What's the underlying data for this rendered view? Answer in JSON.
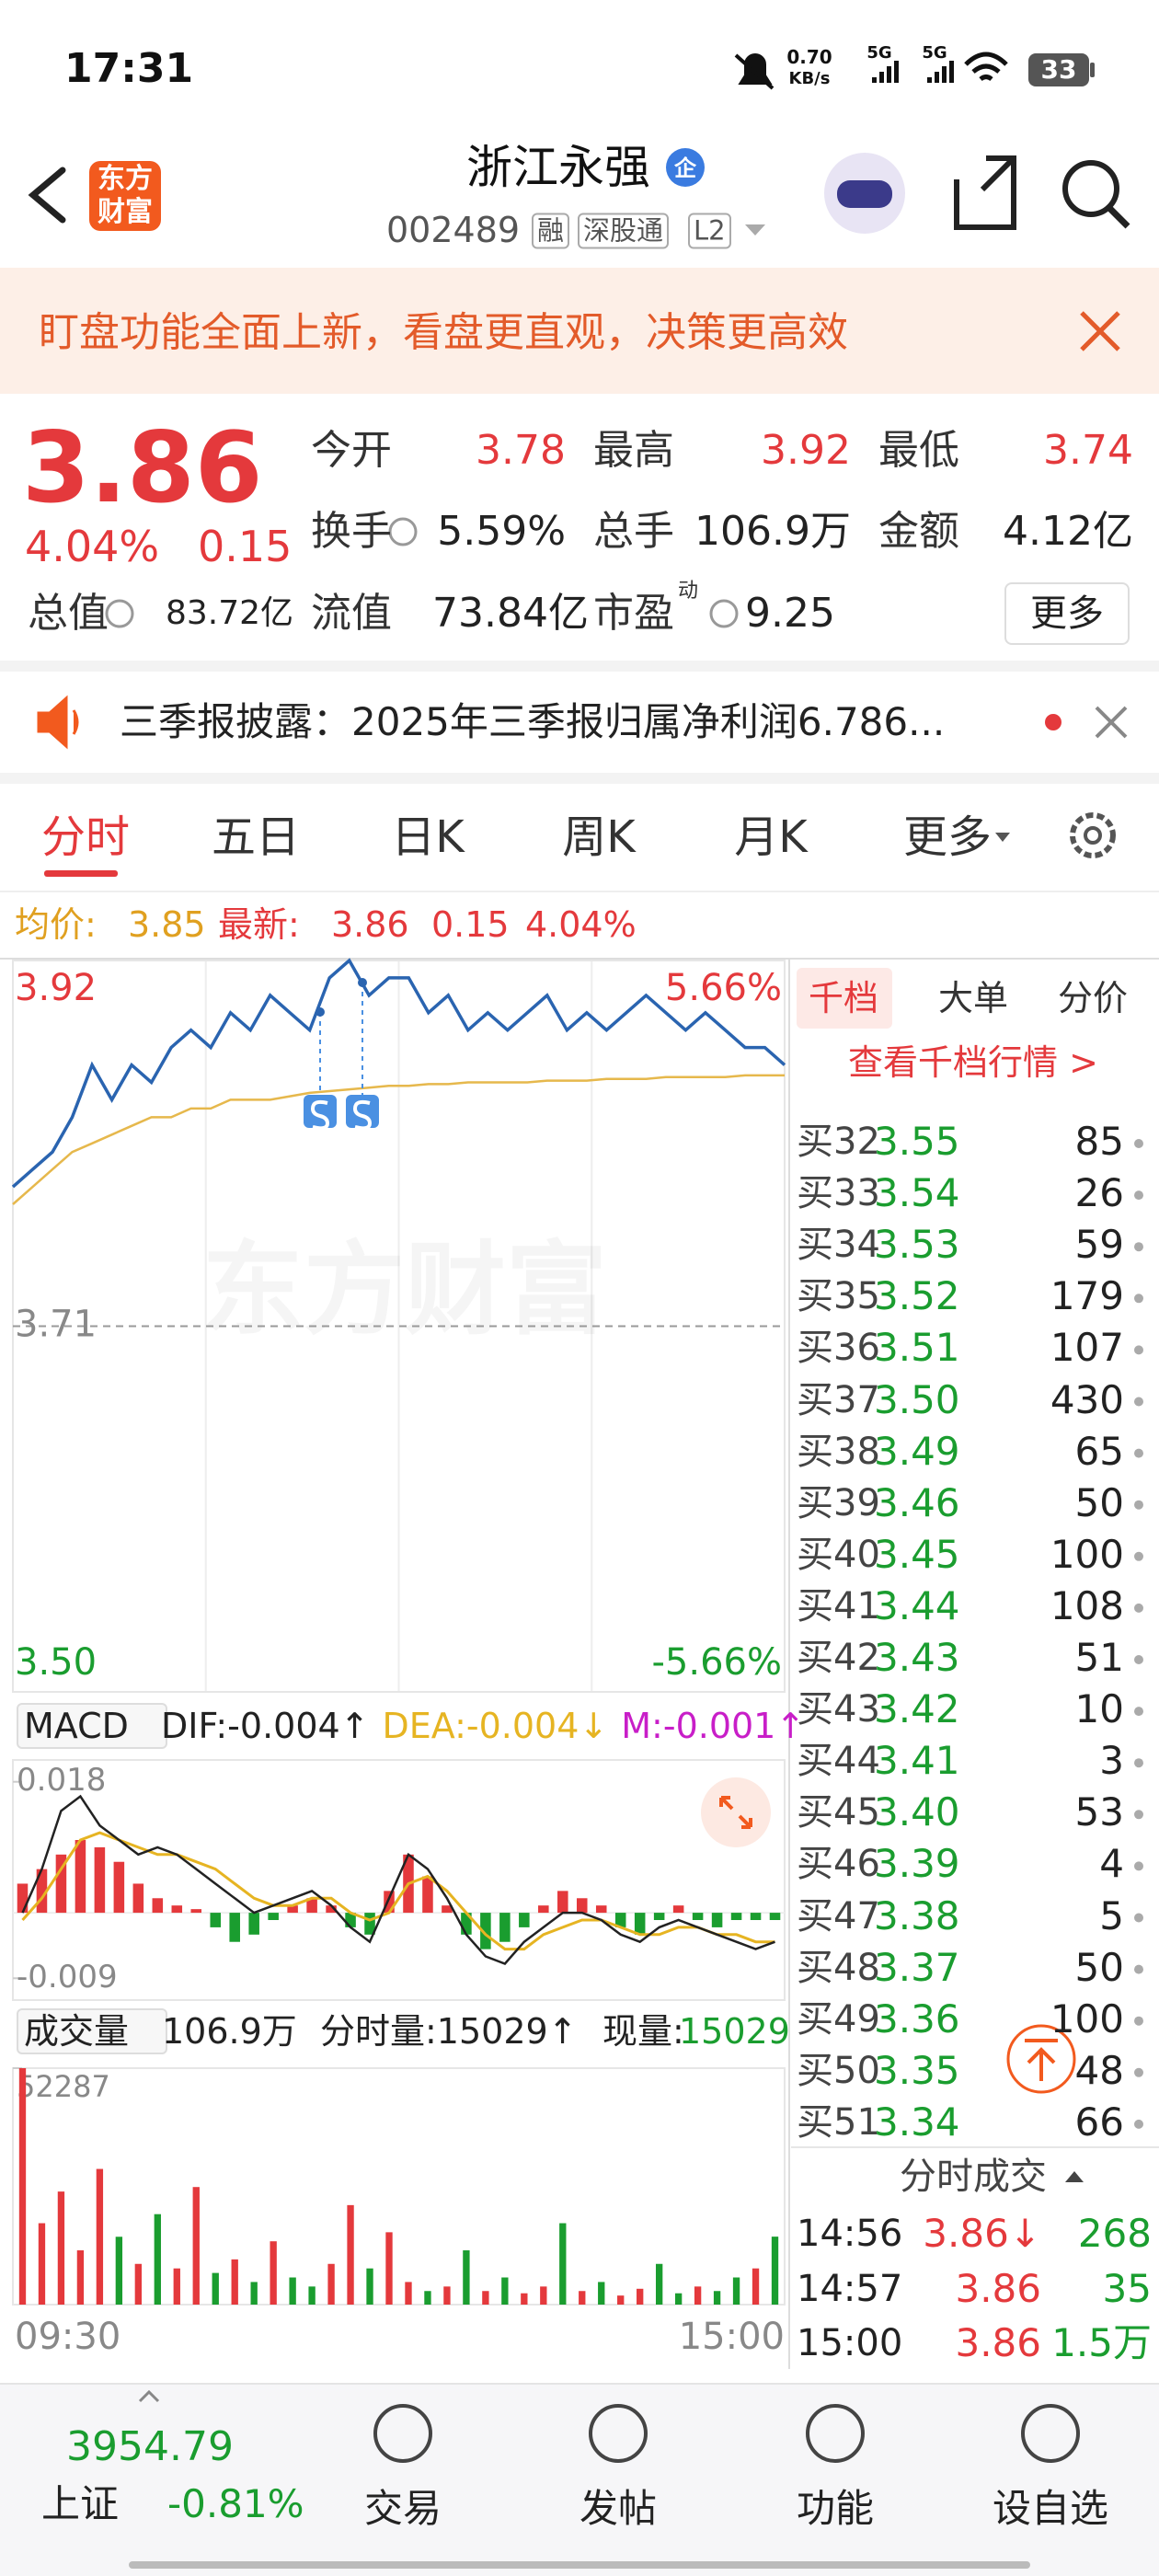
{
  "status_bar": {
    "time": "17:31",
    "speed": "0.70",
    "speed_unit": "KB/s",
    "network": [
      "5G",
      "5G"
    ],
    "battery": "33"
  },
  "header": {
    "logo": "东方财富",
    "title": "浙江永强",
    "badge": "企",
    "code": "002489",
    "tags": [
      "融",
      "深股通",
      "L2"
    ]
  },
  "banner": {
    "text": "盯盘功能全面上新，看盘更直观，决策更高效"
  },
  "quote": {
    "price": "3.86",
    "change_pct": "4.04%",
    "change": "0.15",
    "fields": [
      {
        "label": "今开",
        "value": "3.78"
      },
      {
        "label": "最高",
        "value": "3.92"
      },
      {
        "label": "最低",
        "value": "3.74"
      },
      {
        "label": "换手",
        "value": "5.59%"
      },
      {
        "label": "总手",
        "value": "106.9万"
      },
      {
        "label": "金额",
        "value": "4.12亿"
      },
      {
        "label": "总值",
        "value": "83.72亿"
      },
      {
        "label": "流值",
        "value": "73.84亿"
      },
      {
        "label": "市盈",
        "label_sup": "动",
        "value": "9.25"
      }
    ],
    "more": "更多"
  },
  "news": {
    "text": "三季报披露：2025年三季报归属净利润6.786..."
  },
  "tabs": [
    "分时",
    "五日",
    "日K",
    "周K",
    "月K",
    "更多"
  ],
  "info_line": {
    "avg_label": "均价:",
    "avg": "3.85",
    "latest_label": "最新:",
    "latest": "3.86",
    "change": "0.15",
    "change_pct": "4.04%"
  },
  "price_chart": {
    "type": "line",
    "watermark": "东方财富",
    "ylim": [
      3.5,
      3.92
    ],
    "yticks": [
      3.92,
      3.71,
      {
        "value": 3.5,
        "label": "3.50"
      }
    ],
    "pct_labels": [
      "5.66%",
      "-5.66%"
    ],
    "price": {
      "color": "#2a64b0",
      "values": [
        3.79,
        3.8,
        3.81,
        3.83,
        3.86,
        3.84,
        3.86,
        3.85,
        3.87,
        3.88,
        3.87,
        3.89,
        3.88,
        3.9,
        3.89,
        3.88,
        3.91,
        3.92,
        3.9,
        3.91,
        3.91,
        3.89,
        3.9,
        3.88,
        3.89,
        3.88,
        3.89,
        3.9,
        3.88,
        3.89,
        3.88,
        3.89,
        3.9,
        3.89,
        3.88,
        3.89,
        3.88,
        3.87,
        3.87,
        3.86
      ]
    },
    "average": {
      "color": "#e6b84c",
      "values": [
        3.78,
        3.79,
        3.8,
        3.81,
        3.815,
        3.82,
        3.825,
        3.83,
        3.83,
        3.835,
        3.835,
        3.84,
        3.84,
        3.84,
        3.842,
        3.844,
        3.845,
        3.846,
        3.847,
        3.848,
        3.848,
        3.849,
        3.849,
        3.85,
        3.85,
        3.85,
        3.85,
        3.851,
        3.851,
        3.851,
        3.852,
        3.852,
        3.852,
        3.853,
        3.853,
        3.853,
        3.853,
        3.854,
        3.854,
        3.854
      ]
    }
  },
  "macd": {
    "type": "bar",
    "selector": "MACD",
    "indicators": [
      "DIF:-0.004↑",
      "DEA:-0.004↓",
      "M:-0.001↑"
    ],
    "indicator_colors": [
      "#222222",
      "#e6b422",
      "#c81ec8"
    ],
    "ylim": [
      -0.012,
      0.021
    ],
    "yticks": [
      0.018,
      -0.009
    ],
    "histogram": [
      0.004,
      0.006,
      0.008,
      0.01,
      0.009,
      0.007,
      0.004,
      0.002,
      0.001,
      0.0005,
      -0.002,
      -0.004,
      -0.003,
      -0.001,
      0.001,
      0.002,
      0.001,
      -0.002,
      -0.003,
      0.003,
      0.008,
      0.005,
      0.001,
      -0.003,
      -0.005,
      -0.004,
      -0.002,
      0.001,
      0.003,
      0.002,
      0.001,
      -0.002,
      -0.003,
      -0.001,
      0.001,
      -0.001,
      -0.002,
      -0.001,
      -0.001,
      -0.001
    ],
    "dif": {
      "color": "#222222",
      "values": [
        0.0,
        0.006,
        0.014,
        0.016,
        0.012,
        0.01,
        0.008,
        0.009,
        0.008,
        0.006,
        0.004,
        0.002,
        0.0,
        0.001,
        0.002,
        0.003,
        0.001,
        -0.002,
        -0.004,
        0.002,
        0.008,
        0.006,
        0.002,
        -0.003,
        -0.006,
        -0.007,
        -0.004,
        -0.002,
        0.0,
        0.0,
        -0.001,
        -0.003,
        -0.004,
        -0.002,
        -0.001,
        -0.002,
        -0.003,
        -0.004,
        -0.005,
        -0.004
      ]
    },
    "dea": {
      "color": "#e6b422",
      "values": [
        -0.001,
        0.002,
        0.006,
        0.01,
        0.011,
        0.01,
        0.009,
        0.008,
        0.008,
        0.007,
        0.006,
        0.004,
        0.002,
        0.001,
        0.001,
        0.002,
        0.002,
        0.0,
        -0.001,
        0.0,
        0.004,
        0.005,
        0.003,
        0.0,
        -0.003,
        -0.005,
        -0.005,
        -0.003,
        -0.002,
        -0.001,
        -0.001,
        -0.002,
        -0.003,
        -0.003,
        -0.002,
        -0.002,
        -0.003,
        -0.003,
        -0.004,
        -0.004
      ]
    }
  },
  "volume": {
    "type": "bar",
    "selector": "成交量",
    "total": "106.9万",
    "minute": "分时量:15029↑",
    "current_label": "现量:",
    "current": "15029",
    "ylim": [
      0,
      52287
    ],
    "yticks": [
      52287
    ],
    "values": [
      52287,
      18000,
      25000,
      12000,
      30000,
      15000,
      9000,
      20000,
      8000,
      26000,
      7000,
      10000,
      5000,
      14000,
      6000,
      4000,
      9000,
      22000,
      8000,
      16000,
      5000,
      3000,
      4000,
      12000,
      3000,
      6000,
      2500,
      4000,
      18000,
      3000,
      5000,
      2000,
      3500,
      9000,
      2500,
      4000,
      3000,
      6000,
      8000,
      15029
    ],
    "x_labels": [
      "09:30",
      "15:00"
    ]
  },
  "order_book": {
    "tabs": [
      "千档",
      "大单",
      "分价"
    ],
    "link": "查看千档行情 >",
    "rows": [
      [
        "买32",
        "3.55",
        "85"
      ],
      [
        "买33",
        "3.54",
        "26"
      ],
      [
        "买34",
        "3.53",
        "59"
      ],
      [
        "买35",
        "3.52",
        "179"
      ],
      [
        "买36",
        "3.51",
        "107"
      ],
      [
        "买37",
        "3.50",
        "430"
      ],
      [
        "买38",
        "3.49",
        "65"
      ],
      [
        "买39",
        "3.46",
        "50"
      ],
      [
        "买40",
        "3.45",
        "100"
      ],
      [
        "买41",
        "3.44",
        "108"
      ],
      [
        "买42",
        "3.43",
        "51"
      ],
      [
        "买43",
        "3.42",
        "10"
      ],
      [
        "买44",
        "3.41",
        "3"
      ],
      [
        "买45",
        "3.40",
        "53"
      ],
      [
        "买46",
        "3.39",
        "4"
      ],
      [
        "买47",
        "3.38",
        "5"
      ],
      [
        "买48",
        "3.37",
        "50"
      ],
      [
        "买49",
        "3.36",
        "100"
      ],
      [
        "买50",
        "3.35",
        "48"
      ],
      [
        "买51",
        "3.34",
        "66"
      ]
    ]
  },
  "trades": {
    "title": "分时成交",
    "rows": [
      [
        "14:56",
        "3.86↓",
        "268"
      ],
      [
        "14:57",
        "3.86",
        "35"
      ],
      [
        "15:00",
        "3.86",
        "1.5万"
      ]
    ]
  },
  "bottom_nav": {
    "index_value": "3954.79",
    "index_name": "上证",
    "index_change": "-0.81%",
    "items": [
      "交易",
      "发帖",
      "功能",
      "设自选"
    ]
  }
}
